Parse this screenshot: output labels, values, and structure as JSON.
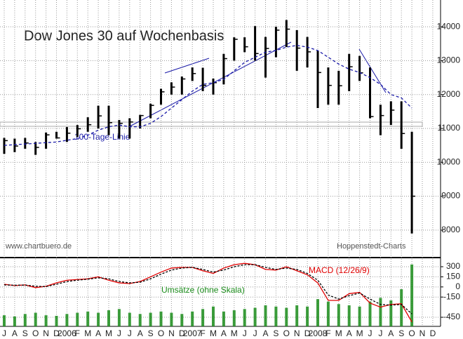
{
  "chart_data": [
    {
      "type": "range-bar",
      "title": "Dow Jones 30 auf Wochenbasis",
      "annotations": [
        "100-Tage-Linie",
        "www.chartbuero.de",
        "Hoppenstedt-Charts"
      ],
      "high": [
        10720,
        10700,
        10720,
        10600,
        10880,
        10900,
        11040,
        11100,
        11330,
        11670,
        11670,
        11250,
        11300,
        11400,
        11730,
        12170,
        12360,
        12530,
        12800,
        12790,
        12470,
        13200,
        13690,
        13690,
        14020,
        13700,
        14000,
        14200,
        13900,
        13700,
        13300,
        12800,
        12700,
        13200,
        13140,
        12800,
        11700,
        11800,
        11800,
        10900,
        null,
        null
      ],
      "low": [
        10250,
        10300,
        10400,
        10220,
        10400,
        10700,
        10600,
        10750,
        10900,
        11000,
        10800,
        10700,
        10700,
        11000,
        11300,
        11700,
        12000,
        12000,
        12400,
        12100,
        12000,
        12300,
        13000,
        13250,
        13000,
        12500,
        13100,
        13400,
        12700,
        12800,
        11600,
        11700,
        11700,
        12100,
        12400,
        11300,
        10800,
        11100,
        10400,
        7900,
        null,
        null
      ],
      "close": [
        10640,
        10480,
        10570,
        10440,
        10810,
        10720,
        10860,
        10990,
        11110,
        11370,
        11170,
        11150,
        11190,
        11380,
        11680,
        12080,
        12220,
        12460,
        12620,
        12270,
        12350,
        13060,
        13630,
        13410,
        13210,
        13360,
        13900,
        13930,
        13370,
        13260,
        12650,
        12270,
        12260,
        12820,
        12640,
        11350,
        11380,
        11540,
        10850,
        9000,
        null,
        null
      ],
      "color": "#000000",
      "series": [
        {
          "name": "100-Tage-Linie",
          "color": "#1a1aa8",
          "values": [
            10500,
            10520,
            10540,
            10560,
            10580,
            10600,
            10650,
            10700,
            10800,
            10950,
            11050,
            11100,
            11050,
            11050,
            11150,
            11350,
            11600,
            11850,
            12100,
            12300,
            12350,
            12450,
            12700,
            12950,
            13100,
            13250,
            13300,
            13400,
            13450,
            13400,
            13300,
            13100,
            12900,
            12750,
            12650,
            12500,
            12300,
            12000,
            11900,
            11600,
            null,
            null
          ]
        }
      ],
      "ylim": [
        7230,
        14790
      ],
      "yticks": [
        8000,
        9000,
        10000,
        11000,
        12000,
        13000,
        14000
      ],
      "grid": true
    },
    {
      "type": "macd",
      "categories": [
        "J",
        "A",
        "S",
        "O",
        "N",
        "D",
        "2006",
        "F",
        "M",
        "A",
        "M",
        "J",
        "J",
        "A",
        "S",
        "O",
        "N",
        "D",
        "2007",
        "F",
        "M",
        "A",
        "M",
        "J",
        "J",
        "A",
        "S",
        "O",
        "N",
        "D",
        "2008",
        "F",
        "M",
        "A",
        "M",
        "J",
        "J",
        "A",
        "S",
        "O",
        "N",
        "D"
      ],
      "series": [
        {
          "name": "MACD (12/26/9)",
          "color": "#e00000",
          "values": [
            40,
            20,
            30,
            -10,
            10,
            60,
            100,
            110,
            120,
            150,
            100,
            60,
            50,
            80,
            150,
            220,
            280,
            290,
            290,
            240,
            200,
            280,
            330,
            350,
            330,
            260,
            250,
            300,
            240,
            180,
            60,
            -200,
            -200,
            -100,
            -80,
            -240,
            -300,
            -260,
            -250,
            -520,
            null,
            null
          ]
        },
        {
          "color": "#000000",
          "values": [
            30,
            25,
            28,
            10,
            5,
            40,
            80,
            100,
            115,
            135,
            120,
            80,
            60,
            70,
            120,
            190,
            250,
            280,
            290,
            260,
            220,
            250,
            300,
            330,
            330,
            290,
            260,
            280,
            260,
            200,
            100,
            -120,
            -180,
            -130,
            -90,
            -180,
            -260,
            -270,
            -260,
            -400,
            null,
            null
          ]
        },
        {
          "name": "Umsätze (ohne Skala)",
          "color": "#1a8c1a",
          "axis": "y2",
          "values": [
            18,
            16,
            20,
            22,
            18,
            17,
            20,
            22,
            24,
            22,
            26,
            28,
            22,
            20,
            22,
            24,
            22,
            20,
            24,
            28,
            32,
            24,
            26,
            28,
            30,
            34,
            32,
            30,
            34,
            32,
            44,
            40,
            36,
            34,
            32,
            40,
            46,
            42,
            60,
            100,
            null,
            null
          ]
        }
      ],
      "ylim": [
        -585,
        425
      ],
      "yticks": [
        300,
        150,
        0,
        -150,
        -450
      ],
      "y2lim": [
        0,
        110
      ],
      "grid": true
    }
  ]
}
